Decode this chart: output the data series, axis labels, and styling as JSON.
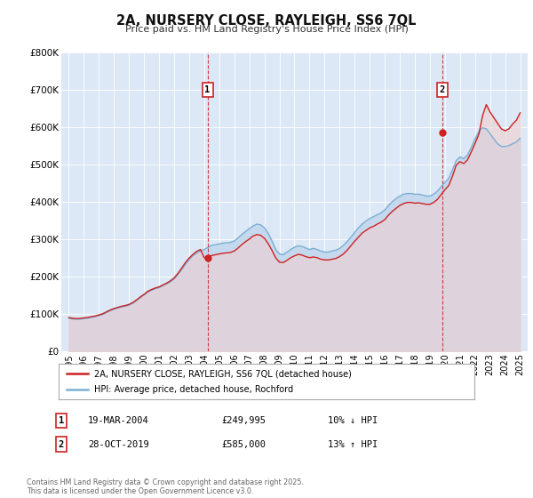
{
  "title": "2A, NURSERY CLOSE, RAYLEIGH, SS6 7QL",
  "subtitle": "Price paid vs. HM Land Registry's House Price Index (HPI)",
  "plot_bg_color": "#dce8f5",
  "legend_label_red": "2A, NURSERY CLOSE, RAYLEIGH, SS6 7QL (detached house)",
  "legend_label_blue": "HPI: Average price, detached house, Rochford",
  "footer": "Contains HM Land Registry data © Crown copyright and database right 2025.\nThis data is licensed under the Open Government Licence v3.0.",
  "sale1_label": "1",
  "sale1_date": "19-MAR-2004",
  "sale1_price": "£249,995",
  "sale1_hpi": "10% ↓ HPI",
  "sale1_year": 2004.22,
  "sale1_value": 249995,
  "sale2_label": "2",
  "sale2_date": "28-OCT-2019",
  "sale2_price": "£585,000",
  "sale2_hpi": "13% ↑ HPI",
  "sale2_year": 2019.83,
  "sale2_value": 585000,
  "ylim": [
    0,
    800000
  ],
  "yticks": [
    0,
    100000,
    200000,
    300000,
    400000,
    500000,
    600000,
    700000,
    800000
  ],
  "ytick_labels": [
    "£0",
    "£100K",
    "£200K",
    "£300K",
    "£400K",
    "£500K",
    "£600K",
    "£700K",
    "£800K"
  ],
  "xlim": [
    1994.5,
    2025.5
  ],
  "xticks": [
    1995,
    1996,
    1997,
    1998,
    1999,
    2000,
    2001,
    2002,
    2003,
    2004,
    2005,
    2006,
    2007,
    2008,
    2009,
    2010,
    2011,
    2012,
    2013,
    2014,
    2015,
    2016,
    2017,
    2018,
    2019,
    2020,
    2021,
    2022,
    2023,
    2024,
    2025
  ],
  "red_color": "#cc2222",
  "blue_color": "#7bafd4",
  "blue_fill_color": "#c5d9ee",
  "hpi_data_years": [
    1995.0,
    1995.25,
    1995.5,
    1995.75,
    1996.0,
    1996.25,
    1996.5,
    1996.75,
    1997.0,
    1997.25,
    1997.5,
    1997.75,
    1998.0,
    1998.25,
    1998.5,
    1998.75,
    1999.0,
    1999.25,
    1999.5,
    1999.75,
    2000.0,
    2000.25,
    2000.5,
    2000.75,
    2001.0,
    2001.25,
    2001.5,
    2001.75,
    2002.0,
    2002.25,
    2002.5,
    2002.75,
    2003.0,
    2003.25,
    2003.5,
    2003.75,
    2004.0,
    2004.25,
    2004.5,
    2004.75,
    2005.0,
    2005.25,
    2005.5,
    2005.75,
    2006.0,
    2006.25,
    2006.5,
    2006.75,
    2007.0,
    2007.25,
    2007.5,
    2007.75,
    2008.0,
    2008.25,
    2008.5,
    2008.75,
    2009.0,
    2009.25,
    2009.5,
    2009.75,
    2010.0,
    2010.25,
    2010.5,
    2010.75,
    2011.0,
    2011.25,
    2011.5,
    2011.75,
    2012.0,
    2012.25,
    2012.5,
    2012.75,
    2013.0,
    2013.25,
    2013.5,
    2013.75,
    2014.0,
    2014.25,
    2014.5,
    2014.75,
    2015.0,
    2015.25,
    2015.5,
    2015.75,
    2016.0,
    2016.25,
    2016.5,
    2016.75,
    2017.0,
    2017.25,
    2017.5,
    2017.75,
    2018.0,
    2018.25,
    2018.5,
    2018.75,
    2019.0,
    2019.25,
    2019.5,
    2019.75,
    2020.0,
    2020.25,
    2020.5,
    2020.75,
    2021.0,
    2021.25,
    2021.5,
    2021.75,
    2022.0,
    2022.25,
    2022.5,
    2022.75,
    2023.0,
    2023.25,
    2023.5,
    2023.75,
    2024.0,
    2024.25,
    2024.5,
    2024.75,
    2025.0
  ],
  "hpi_data_values": [
    88000,
    86000,
    85000,
    85500,
    87000,
    88000,
    90000,
    92000,
    95000,
    98000,
    103000,
    108000,
    112000,
    115000,
    118000,
    120000,
    123000,
    128000,
    135000,
    143000,
    150000,
    158000,
    163000,
    167000,
    170000,
    175000,
    180000,
    185000,
    193000,
    205000,
    218000,
    232000,
    245000,
    255000,
    263000,
    268000,
    272000,
    278000,
    283000,
    285000,
    287000,
    289000,
    290000,
    291000,
    295000,
    303000,
    312000,
    320000,
    328000,
    335000,
    340000,
    338000,
    330000,
    315000,
    295000,
    272000,
    260000,
    258000,
    265000,
    272000,
    278000,
    282000,
    280000,
    276000,
    272000,
    275000,
    272000,
    268000,
    265000,
    265000,
    268000,
    270000,
    275000,
    283000,
    293000,
    305000,
    318000,
    330000,
    340000,
    348000,
    355000,
    360000,
    365000,
    370000,
    378000,
    390000,
    400000,
    408000,
    415000,
    420000,
    422000,
    422000,
    420000,
    420000,
    418000,
    415000,
    415000,
    420000,
    428000,
    440000,
    452000,
    462000,
    485000,
    510000,
    520000,
    515000,
    525000,
    545000,
    568000,
    588000,
    598000,
    595000,
    582000,
    568000,
    555000,
    548000,
    548000,
    550000,
    555000,
    560000,
    570000
  ],
  "price_data_years": [
    1995.0,
    1995.25,
    1995.5,
    1995.75,
    1996.0,
    1996.25,
    1996.5,
    1996.75,
    1997.0,
    1997.25,
    1997.5,
    1997.75,
    1998.0,
    1998.25,
    1998.5,
    1998.75,
    1999.0,
    1999.25,
    1999.5,
    1999.75,
    2000.0,
    2000.25,
    2000.5,
    2000.75,
    2001.0,
    2001.25,
    2001.5,
    2001.75,
    2002.0,
    2002.25,
    2002.5,
    2002.75,
    2003.0,
    2003.25,
    2003.5,
    2003.75,
    2004.0,
    2004.25,
    2004.5,
    2004.75,
    2005.0,
    2005.25,
    2005.5,
    2005.75,
    2006.0,
    2006.25,
    2006.5,
    2006.75,
    2007.0,
    2007.25,
    2007.5,
    2007.75,
    2008.0,
    2008.25,
    2008.5,
    2008.75,
    2009.0,
    2009.25,
    2009.5,
    2009.75,
    2010.0,
    2010.25,
    2010.5,
    2010.75,
    2011.0,
    2011.25,
    2011.5,
    2011.75,
    2012.0,
    2012.25,
    2012.5,
    2012.75,
    2013.0,
    2013.25,
    2013.5,
    2013.75,
    2014.0,
    2014.25,
    2014.5,
    2014.75,
    2015.0,
    2015.25,
    2015.5,
    2015.75,
    2016.0,
    2016.25,
    2016.5,
    2016.75,
    2017.0,
    2017.25,
    2017.5,
    2017.75,
    2018.0,
    2018.25,
    2018.5,
    2018.75,
    2019.0,
    2019.25,
    2019.5,
    2019.75,
    2020.0,
    2020.25,
    2020.5,
    2020.75,
    2021.0,
    2021.25,
    2021.5,
    2021.75,
    2022.0,
    2022.25,
    2022.5,
    2022.75,
    2023.0,
    2023.25,
    2023.5,
    2023.75,
    2024.0,
    2024.25,
    2024.5,
    2024.75,
    2025.0
  ],
  "price_data_values": [
    90000,
    88000,
    87000,
    87500,
    89000,
    90000,
    92000,
    94000,
    97000,
    100000,
    105000,
    110000,
    114000,
    117000,
    120000,
    122000,
    125000,
    130000,
    137000,
    145000,
    152000,
    160000,
    165000,
    169000,
    172000,
    177000,
    182000,
    188000,
    196000,
    208000,
    222000,
    237000,
    249000,
    259000,
    267000,
    272000,
    249995,
    252000,
    256000,
    258000,
    260000,
    262000,
    263000,
    264000,
    268000,
    276000,
    285000,
    293000,
    300000,
    308000,
    312000,
    310000,
    302000,
    288000,
    270000,
    250000,
    238000,
    237000,
    243000,
    250000,
    255000,
    259000,
    257000,
    253000,
    250000,
    252000,
    250000,
    246000,
    244000,
    244000,
    246000,
    248000,
    253000,
    260000,
    270000,
    282000,
    294000,
    305000,
    316000,
    323000,
    330000,
    334000,
    340000,
    345000,
    352000,
    364000,
    374000,
    382000,
    390000,
    395000,
    398000,
    398000,
    396000,
    397000,
    395000,
    393000,
    393000,
    398000,
    406000,
    419000,
    432000,
    443000,
    468000,
    498000,
    507000,
    502000,
    512000,
    533000,
    556000,
    580000,
    630000,
    660000,
    640000,
    625000,
    610000,
    595000,
    590000,
    595000,
    608000,
    618000,
    638000
  ]
}
